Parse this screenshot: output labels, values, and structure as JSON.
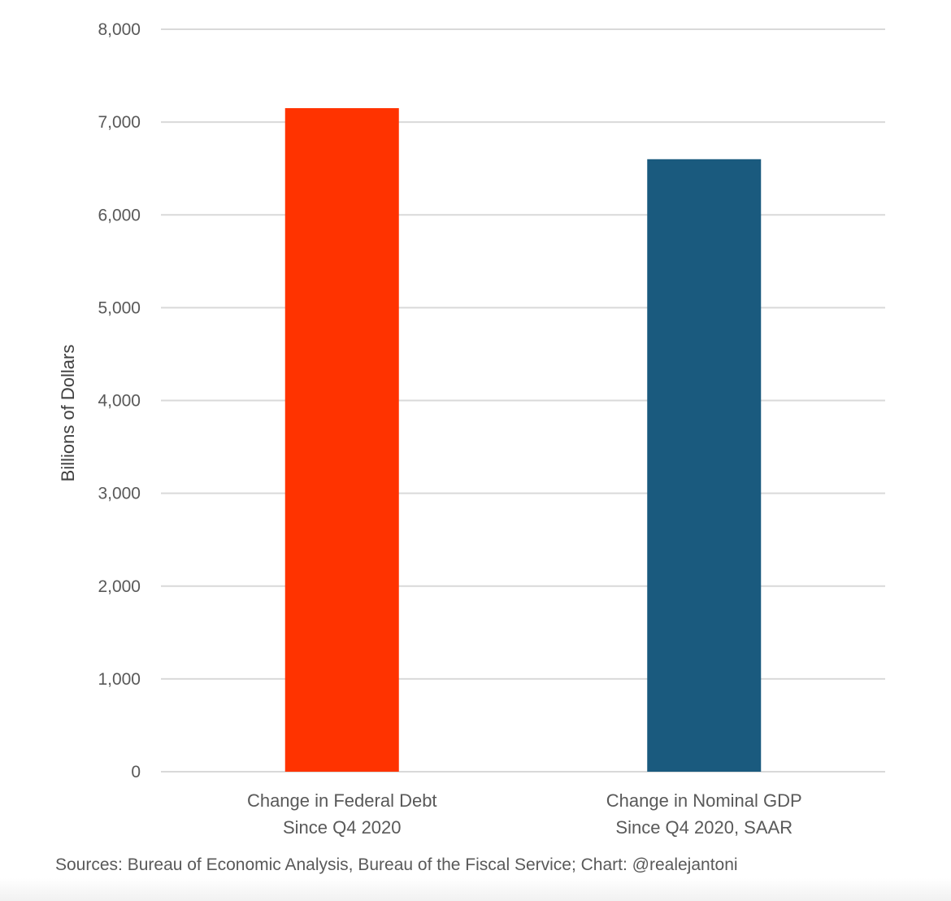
{
  "chart_data": {
    "type": "bar",
    "title": "",
    "xlabel": "",
    "ylabel": "Billions of Dollars",
    "ylim": [
      0,
      8000
    ],
    "yticks": [
      0,
      1000,
      2000,
      3000,
      4000,
      5000,
      6000,
      7000,
      8000
    ],
    "ytick_labels": [
      "0",
      "1,000",
      "2,000",
      "3,000",
      "4,000",
      "5,000",
      "6,000",
      "7,000",
      "8,000"
    ],
    "grid": true,
    "legend": "none",
    "categories": [
      [
        "Change in Federal Debt",
        "Since Q4 2020"
      ],
      [
        "Change in Nominal GDP",
        "Since Q4 2020, SAAR"
      ]
    ],
    "values": [
      7150,
      6600
    ],
    "colors": [
      "#ff3300",
      "#1a5a7e"
    ],
    "source": "Sources: Bureau of Economic Analysis, Bureau of the Fiscal Service; Chart: @realejantoni"
  }
}
